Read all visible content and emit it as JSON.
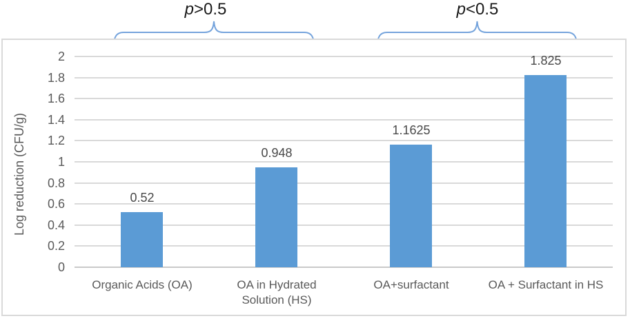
{
  "annotations": {
    "left_bracket_label": {
      "prefix": "p",
      "rest": ">0.5"
    },
    "right_bracket_label": {
      "prefix": "p",
      "rest": "<0.5"
    }
  },
  "colors": {
    "bar_blue": "#5B9BD5",
    "brace_blue": "#74A3DC",
    "gridline_gray": "#D9D9D9",
    "baseline_gray": "#C9C9C9",
    "axis_text_gray": "#595959"
  },
  "chart_data": {
    "type": "bar",
    "title": "",
    "xlabel": "",
    "ylabel": "Log reduction (CFU/g)",
    "ylim": [
      0,
      2
    ],
    "ytick_interval": 0.2,
    "ytick_labels": [
      "2",
      "1.8",
      "1.6",
      "1.4",
      "1.2",
      "1",
      "0.8",
      "0.6",
      "0.4",
      "0.2",
      "0"
    ],
    "categories": [
      "Organic Acids (OA)",
      "OA in Hydrated\nSolution (HS)",
      "OA+surfactant",
      "OA + Surfactant in HS"
    ],
    "values": [
      0.52,
      0.948,
      1.1625,
      1.825
    ],
    "data_labels": [
      "0.52",
      "0.948",
      "1.1625",
      "1.825"
    ],
    "grid": true,
    "legend": "none",
    "bracket_groups": [
      {
        "label": "p>0.5",
        "covers_categories": [
          "Organic Acids (OA)",
          "OA in Hydrated Solution (HS)"
        ]
      },
      {
        "label": "p<0.5",
        "covers_categories": [
          "OA+surfactant",
          "OA + Surfactant in HS"
        ]
      }
    ]
  }
}
